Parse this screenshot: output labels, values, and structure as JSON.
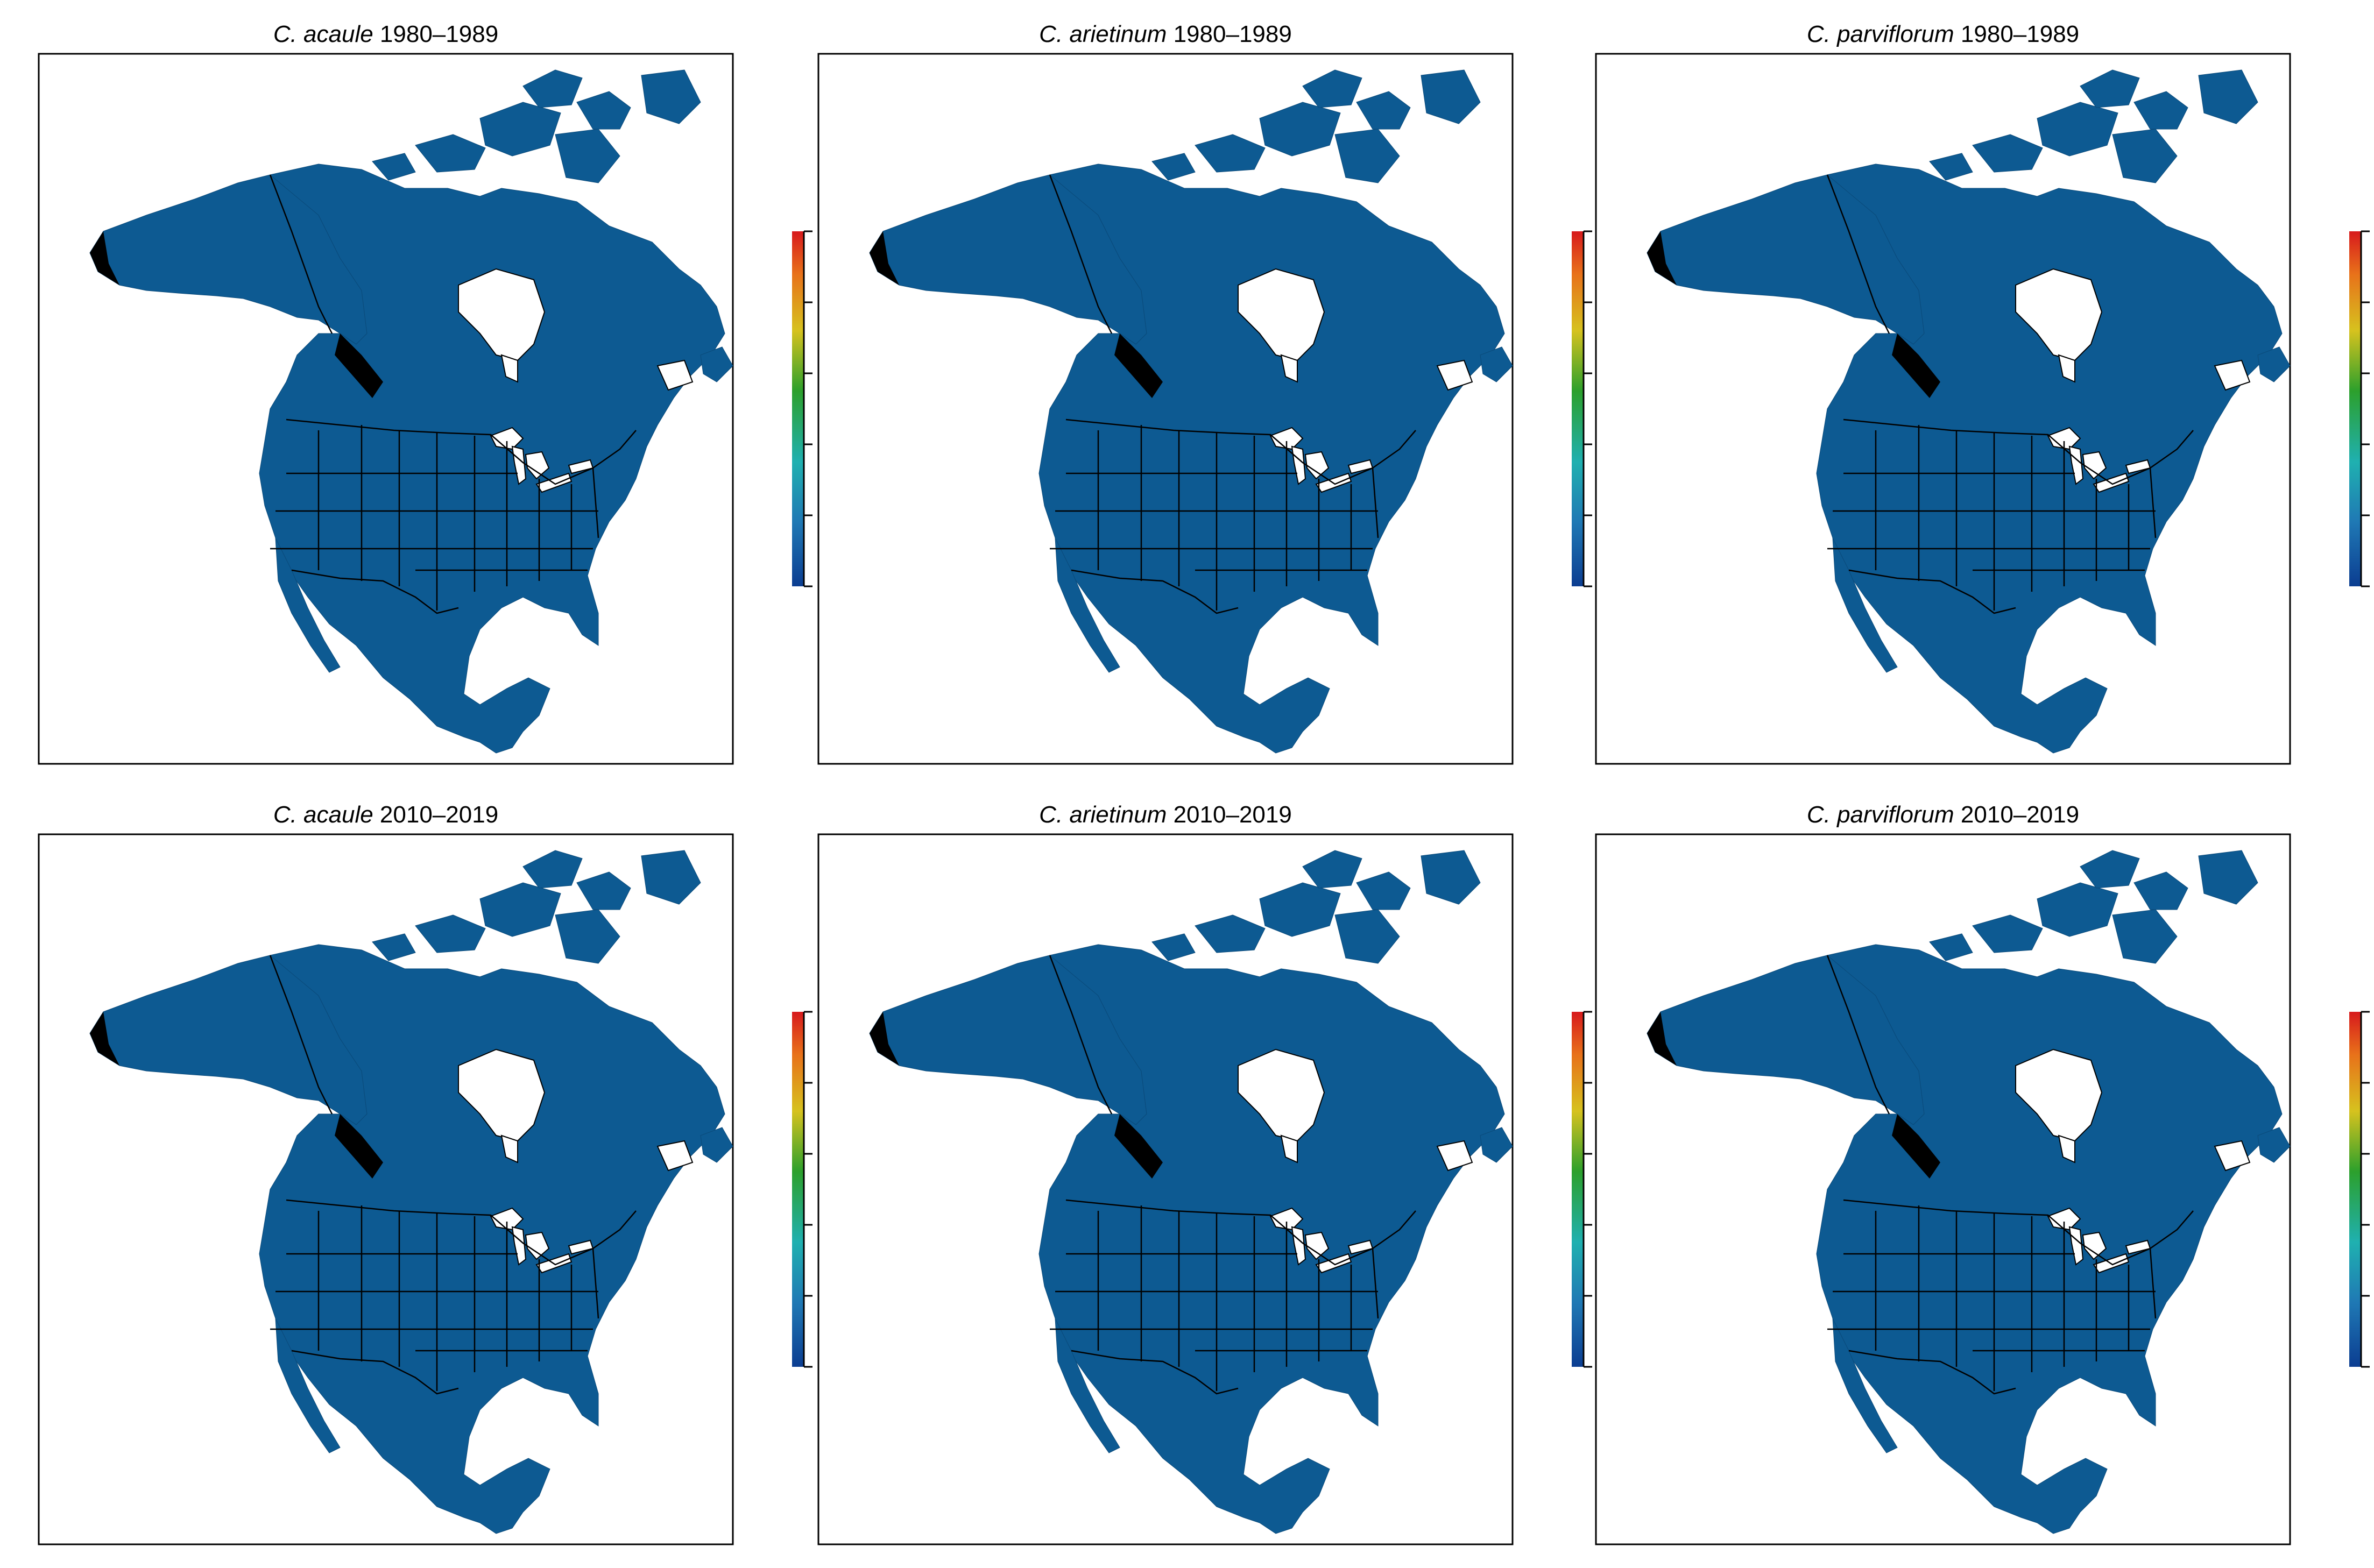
{
  "panels": [
    {
      "species": "C. acaule",
      "period": "1980–1989",
      "hotspots": "ne"
    },
    {
      "species": "C. arietinum",
      "period": "1980–1989",
      "hotspots": "lakes"
    },
    {
      "species": "C. parviflorum",
      "period": "1980–1989",
      "hotspots": "band"
    },
    {
      "species": "C. acaule",
      "period": "2010–2019",
      "hotspots": "east"
    },
    {
      "species": "C. arietinum",
      "period": "2010–2019",
      "hotspots": "lakes2"
    },
    {
      "species": "C. parviflorum",
      "period": "2010–2019",
      "hotspots": "mixed"
    }
  ],
  "colorbar": {
    "ticks": [
      "0.0",
      "0.2",
      "0.4",
      "0.6",
      "0.8",
      "1.0"
    ],
    "range": [
      0,
      1
    ],
    "colors": [
      "#0b3d91",
      "#1f78b4",
      "#1fb0b0",
      "#2ca02c",
      "#d6c21e",
      "#e8711a",
      "#d7191c"
    ]
  },
  "map_colors": {
    "land": "#0d5a92",
    "water": "#ffffff",
    "coast_dark": "#000000",
    "low": "#1f8ea6",
    "mid": "#2aa87a",
    "high_yellow": "#d9c423",
    "high_orange": "#f07a21",
    "high_red": "#e02a1a"
  }
}
